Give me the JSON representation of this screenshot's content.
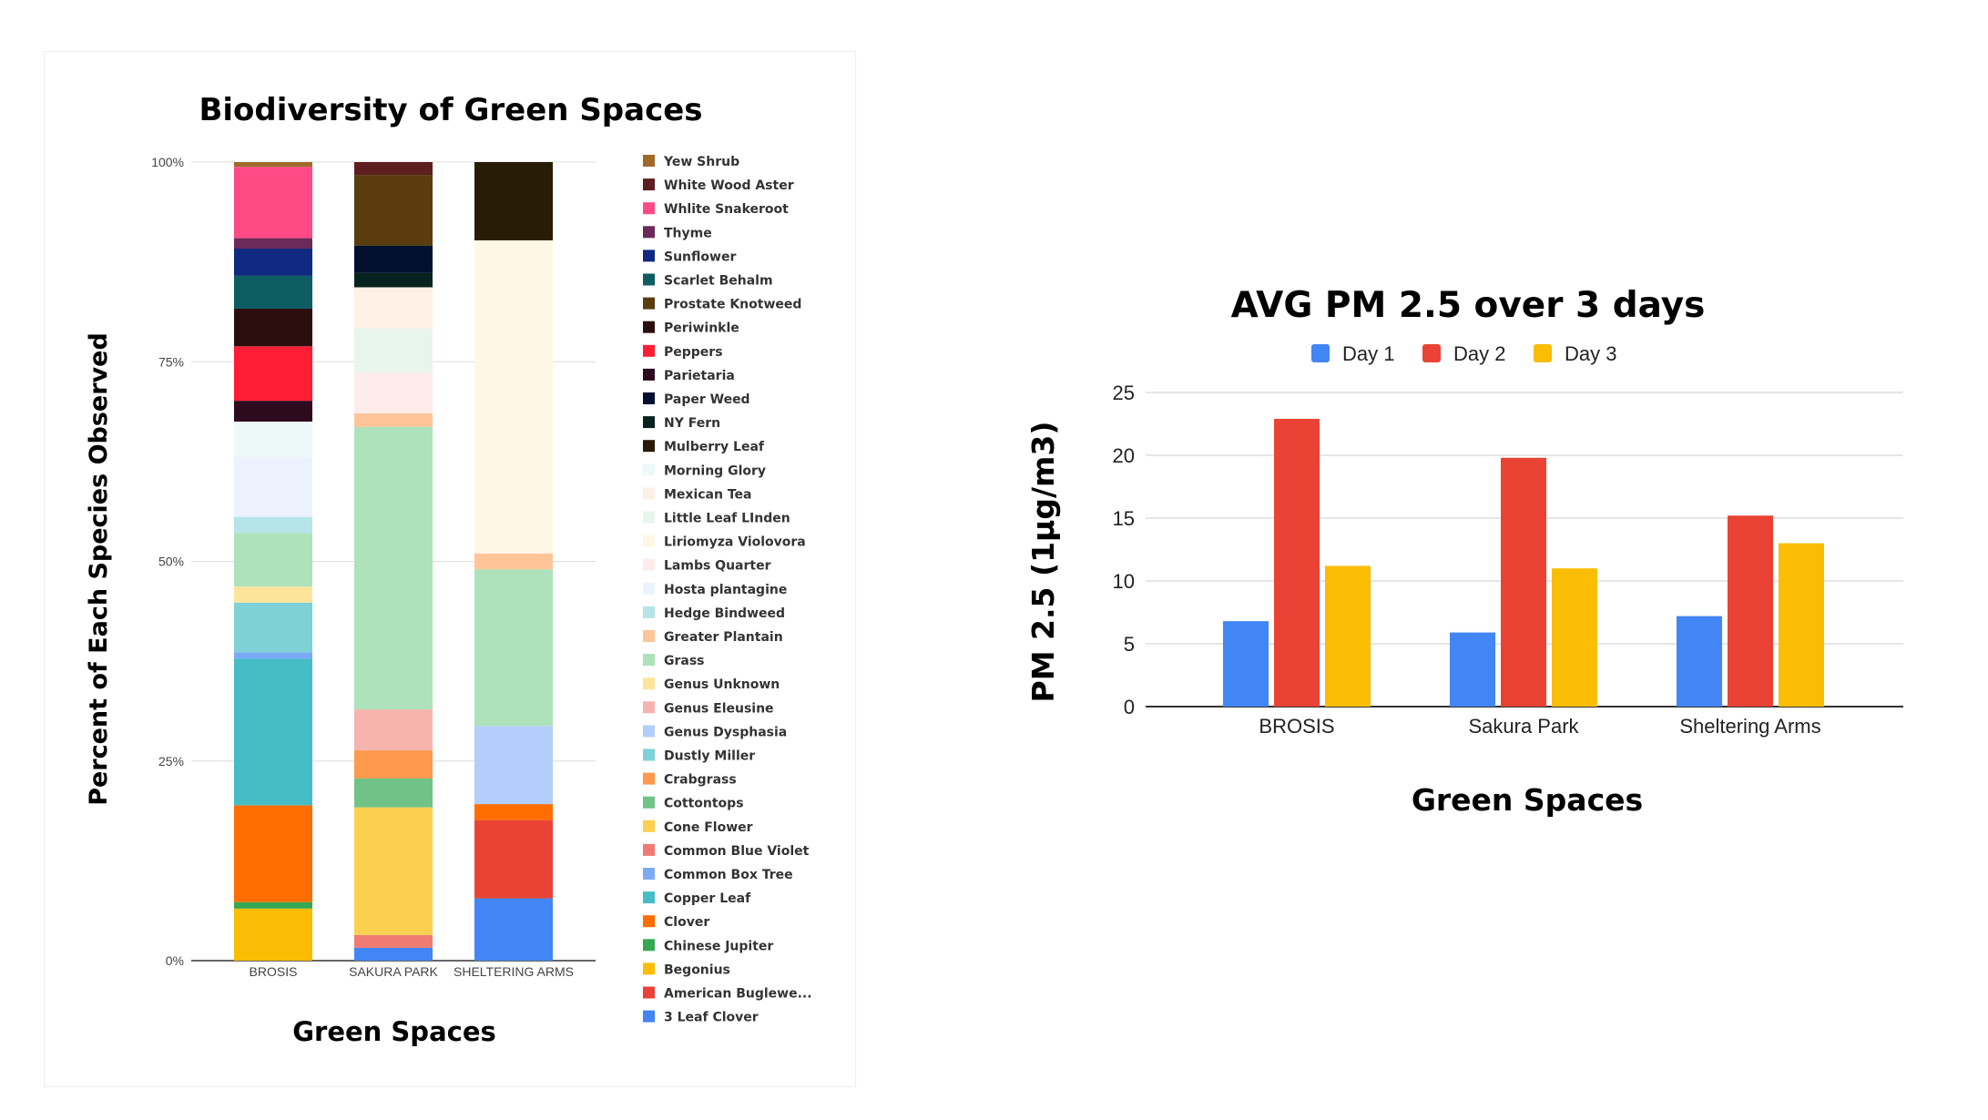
{
  "chart_data": [
    {
      "type": "bar",
      "stacked": "percent",
      "title": "Biodiversity of Green Spaces",
      "xlabel": "Green Spaces",
      "ylabel": "Percent of Each Species Observed",
      "y_ticks": [
        "100%",
        "75%",
        "50%",
        "25%",
        "0%"
      ],
      "ylim": [
        0,
        100
      ],
      "grid": true,
      "legend_position": "right",
      "categories": [
        "BROSIS",
        "SAKURA PARK",
        "SHELTERING ARMS"
      ],
      "series": [
        {
          "name": "3 Leaf Clover",
          "color": "#4285f4",
          "values": [
            0,
            1.6,
            7.8
          ]
        },
        {
          "name": "American Buglewe...",
          "color": "#ea4335",
          "values": [
            0,
            0,
            9.8
          ]
        },
        {
          "name": "Begonius",
          "color": "#fbbc04",
          "values": [
            6.5,
            0,
            0
          ]
        },
        {
          "name": "Chinese Jupiter",
          "color": "#34a853",
          "values": [
            0.8,
            0,
            0
          ]
        },
        {
          "name": "Clover",
          "color": "#ff6d01",
          "values": [
            12.1,
            0,
            2.0
          ]
        },
        {
          "name": "Copper Leaf",
          "color": "#46bdc6",
          "values": [
            18.3,
            0,
            0
          ]
        },
        {
          "name": "Common Box Tree",
          "color": "#7baaf7",
          "values": [
            0.8,
            0,
            0
          ]
        },
        {
          "name": "Common Blue Violet",
          "color": "#f07b72",
          "values": [
            0,
            1.6,
            0
          ]
        },
        {
          "name": "Cone Flower",
          "color": "#fcd04f",
          "values": [
            0,
            15.9,
            0
          ]
        },
        {
          "name": "Cottontops",
          "color": "#71c287",
          "values": [
            0,
            3.6,
            0
          ]
        },
        {
          "name": "Crabgrass",
          "color": "#ff994d",
          "values": [
            0,
            3.5,
            0
          ]
        },
        {
          "name": "Dustly Miller",
          "color": "#7ed1d7",
          "values": [
            6.2,
            0,
            0
          ]
        },
        {
          "name": "Genus Dysphasia",
          "color": "#b3cefb",
          "values": [
            0,
            0,
            9.8
          ]
        },
        {
          "name": "Genus Eleusine",
          "color": "#f7b4ae",
          "values": [
            0,
            5.1,
            0
          ]
        },
        {
          "name": "Genus Unknown",
          "color": "#fde49b",
          "values": [
            2.0,
            0,
            0
          ]
        },
        {
          "name": "Grass",
          "color": "#ade2bb",
          "values": [
            6.7,
            35.2,
            19.6
          ]
        },
        {
          "name": "Greater Plantain",
          "color": "#ffc599",
          "values": [
            0,
            1.7,
            2.0
          ]
        },
        {
          "name": "Hedge Bindweed",
          "color": "#b5e5e8",
          "values": [
            2.0,
            0,
            0
          ]
        },
        {
          "name": "Hosta plantagine",
          "color": "#ecf3fe",
          "values": [
            7.4,
            0,
            0
          ]
        },
        {
          "name": "Lambs Quarter",
          "color": "#fdeceb",
          "values": [
            0,
            5.1,
            0
          ]
        },
        {
          "name": "Liriomyza Violovora",
          "color": "#fff7e6",
          "values": [
            0,
            0,
            39.2
          ]
        },
        {
          "name": "Little Leaf LInden",
          "color": "#e8f5ec",
          "values": [
            0,
            5.5,
            0
          ]
        },
        {
          "name": "Mexican Tea",
          "color": "#fff0e6",
          "values": [
            0,
            5.1,
            0
          ]
        },
        {
          "name": "Morning Glory",
          "color": "#edf8f9",
          "values": [
            4.5,
            0,
            0
          ]
        },
        {
          "name": "Mulberry Leaf",
          "color": "#291c06",
          "values": [
            0,
            0,
            9.8
          ]
        },
        {
          "name": "NY Fern",
          "color": "#06231f",
          "values": [
            0,
            1.8,
            0
          ]
        },
        {
          "name": "Paper Weed",
          "color": "#020f2e",
          "values": [
            0,
            3.4,
            0
          ]
        },
        {
          "name": "Parietaria",
          "color": "#2e0a1f",
          "values": [
            2.6,
            0,
            0
          ]
        },
        {
          "name": "Peppers",
          "color": "#ff1e36",
          "values": [
            6.8,
            0,
            0
          ]
        },
        {
          "name": "Periwinkle",
          "color": "#2b0f0f",
          "values": [
            4.7,
            0,
            0
          ]
        },
        {
          "name": "Prostate Knotweed",
          "color": "#5a3c0e",
          "values": [
            0,
            8.8,
            0
          ]
        },
        {
          "name": "Scarlet Behalm",
          "color": "#0d5e63",
          "values": [
            4.1,
            0,
            0
          ]
        },
        {
          "name": "Sunflower",
          "color": "#0f2a80",
          "values": [
            3.4,
            0,
            0
          ]
        },
        {
          "name": "Thyme",
          "color": "#6b2a5a",
          "values": [
            1.3,
            0,
            0
          ]
        },
        {
          "name": "Whlite Snakeroot",
          "color": "#ff4a86",
          "values": [
            8.9,
            0,
            0
          ]
        },
        {
          "name": "White Wood Aster",
          "color": "#5c1e1e",
          "values": [
            0,
            1.6,
            0
          ]
        },
        {
          "name": "Yew Shrub",
          "color": "#a0692a",
          "values": [
            0.6,
            0,
            0
          ]
        }
      ]
    },
    {
      "type": "bar",
      "title": "AVG PM 2.5 over 3 days",
      "xlabel": "Green Spaces",
      "ylabel": "PM 2.5 (1µg/m3)",
      "y_ticks": [
        "25",
        "20",
        "15",
        "10",
        "5",
        "0"
      ],
      "ylim": [
        0,
        25
      ],
      "grid": true,
      "legend_position": "top",
      "categories": [
        "BROSIS",
        "Sakura Park",
        "Sheltering Arms"
      ],
      "series": [
        {
          "name": "Day 1",
          "color": "#4285f4",
          "values": [
            6.8,
            5.9,
            7.2
          ]
        },
        {
          "name": "Day 2",
          "color": "#ea4335",
          "values": [
            22.9,
            19.8,
            15.2
          ]
        },
        {
          "name": "Day 3",
          "color": "#fbbc04",
          "values": [
            11.2,
            11.0,
            13.0
          ]
        }
      ]
    }
  ]
}
